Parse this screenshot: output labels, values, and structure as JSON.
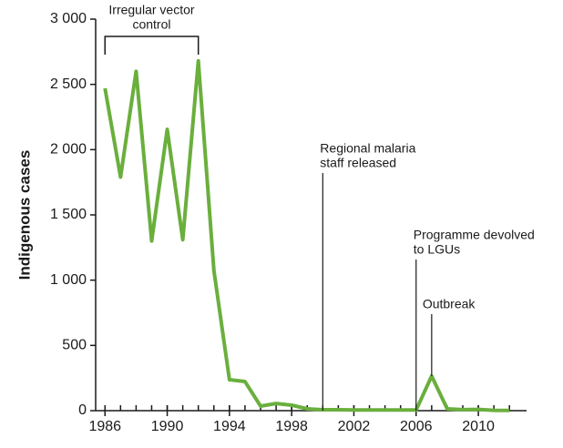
{
  "chart_data": {
    "type": "line",
    "y_label": "Indigenous cases",
    "x": [
      1986,
      1987,
      1988,
      1989,
      1990,
      1991,
      1992,
      1993,
      1994,
      1995,
      1996,
      1997,
      1998,
      1999,
      2000,
      2001,
      2002,
      2003,
      2004,
      2005,
      2006,
      2007,
      2008,
      2009,
      2010,
      2011,
      2012
    ],
    "series": [
      {
        "name": "Indigenous cases",
        "color": "#6aaf3d",
        "values": [
          2470,
          1790,
          2600,
          1300,
          2155,
          1310,
          2680,
          1075,
          237,
          223,
          35,
          55,
          42,
          14,
          7,
          7,
          5,
          5,
          5,
          5,
          5,
          265,
          14,
          8,
          10,
          3,
          2
        ]
      }
    ],
    "xlim": [
      1985.4,
      2013.1
    ],
    "xticks": [
      1986,
      1990,
      1994,
      1998,
      2002,
      2006,
      2010
    ],
    "ylim": [
      0,
      3000
    ],
    "yticks": [
      {
        "value": 0,
        "label": "0"
      },
      {
        "value": 500,
        "label": "500"
      },
      {
        "value": 1000,
        "label": "1 000"
      },
      {
        "value": 1500,
        "label": "1 500"
      },
      {
        "value": 2000,
        "label": "2 000"
      },
      {
        "value": 2500,
        "label": "2 500"
      },
      {
        "value": 3000,
        "label": "3 000"
      }
    ],
    "annotations": [
      {
        "text": [
          "Irregular vector",
          "control"
        ],
        "x": [
          1986,
          1992
        ]
      },
      {
        "text": [
          "Regional malaria",
          "staff released"
        ],
        "x": 2000
      },
      {
        "text": [
          "Programme devolved",
          "to LGUs"
        ],
        "x": 2006
      },
      {
        "text": [
          "Outbreak"
        ],
        "x": 2007
      }
    ]
  }
}
